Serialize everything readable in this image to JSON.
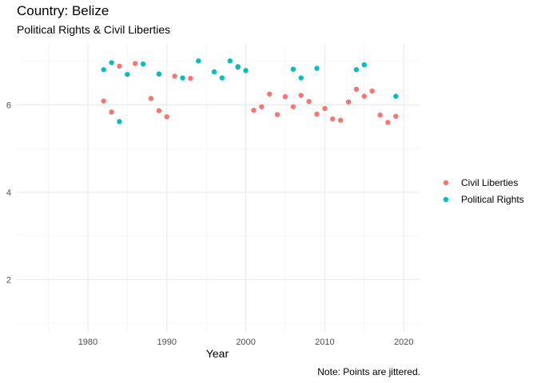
{
  "chart_data": {
    "type": "scatter",
    "title": "Country: Belize",
    "subtitle": "Political Rights & Civil Liberties",
    "caption": "Note: Points are jittered.",
    "xlabel": "Year",
    "ylabel": "",
    "xlim": [
      1971,
      2022
    ],
    "ylim": [
      0.8,
      7.4
    ],
    "x_ticks": [
      1980,
      1990,
      2000,
      2010,
      2020
    ],
    "y_ticks": [
      2,
      4,
      6
    ],
    "grid": true,
    "legend_position": "right",
    "series": [
      {
        "name": "Civil Liberties",
        "color": "#F8766D",
        "points": [
          [
            1982,
            6.09
          ],
          [
            1983,
            5.84
          ],
          [
            1984,
            6.89
          ],
          [
            1986,
            6.95
          ],
          [
            1988,
            6.15
          ],
          [
            1989,
            5.87
          ],
          [
            1990,
            5.73
          ],
          [
            1991,
            6.66
          ],
          [
            1993,
            6.61
          ],
          [
            1999,
            6.86
          ],
          [
            2001,
            5.88
          ],
          [
            2002,
            5.96
          ],
          [
            2003,
            6.25
          ],
          [
            2004,
            5.78
          ],
          [
            2005,
            6.19
          ],
          [
            2006,
            5.96
          ],
          [
            2007,
            6.22
          ],
          [
            2008,
            6.08
          ],
          [
            2009,
            5.79
          ],
          [
            2010,
            5.92
          ],
          [
            2011,
            5.68
          ],
          [
            2012,
            5.65
          ],
          [
            2013,
            6.07
          ],
          [
            2014,
            6.36
          ],
          [
            2015,
            6.2
          ],
          [
            2016,
            6.32
          ],
          [
            2017,
            5.77
          ],
          [
            2018,
            5.6
          ],
          [
            2019,
            5.74
          ]
        ]
      },
      {
        "name": "Political Rights",
        "color": "#00BFC4",
        "points": [
          [
            1982,
            6.81
          ],
          [
            1983,
            6.97
          ],
          [
            1984,
            5.62
          ],
          [
            1985,
            6.7
          ],
          [
            1987,
            6.94
          ],
          [
            1989,
            6.71
          ],
          [
            1992,
            6.62
          ],
          [
            1994,
            7.01
          ],
          [
            1996,
            6.76
          ],
          [
            1997,
            6.62
          ],
          [
            1998,
            7.01
          ],
          [
            1999,
            6.88
          ],
          [
            2000,
            6.79
          ],
          [
            2006,
            6.82
          ],
          [
            2007,
            6.62
          ],
          [
            2009,
            6.84
          ],
          [
            2014,
            6.81
          ],
          [
            2015,
            6.92
          ],
          [
            2019,
            6.2
          ]
        ]
      }
    ]
  }
}
